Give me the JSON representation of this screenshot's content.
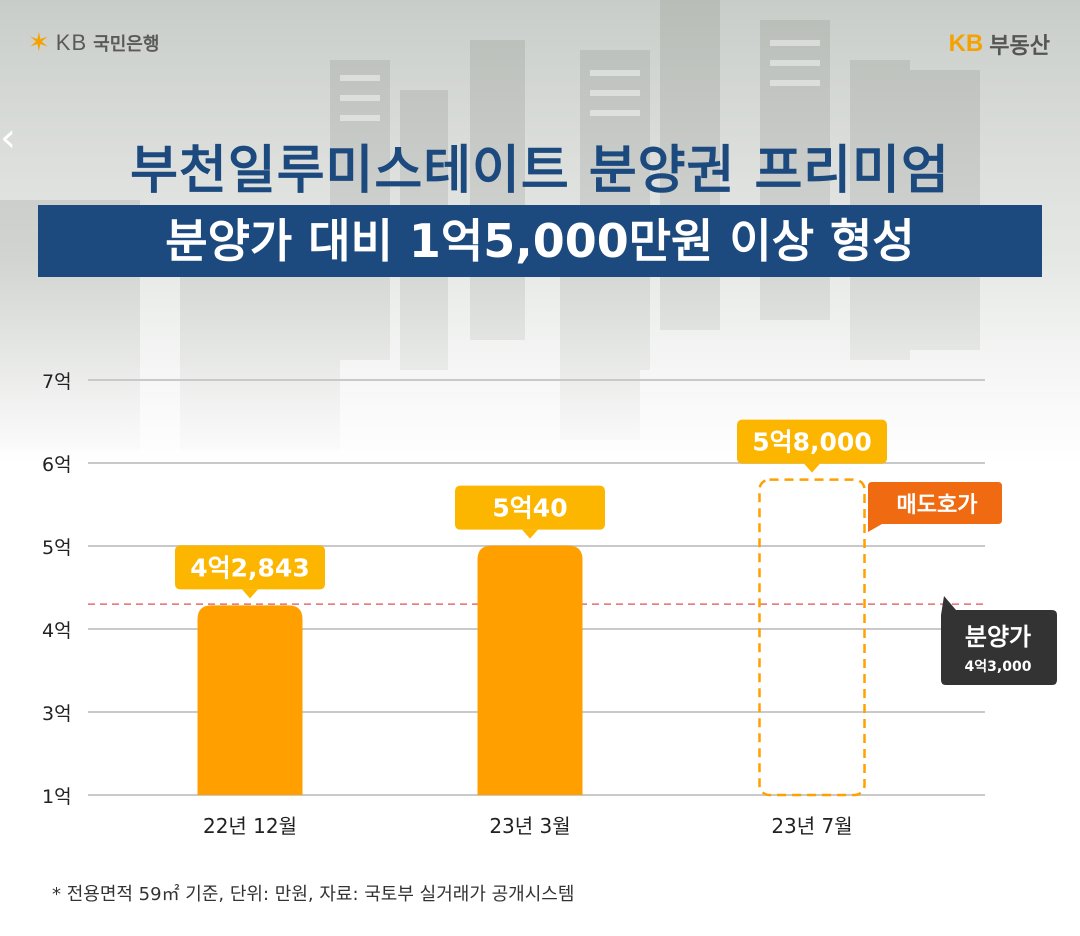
{
  "header": {
    "left_logo_kb": "KB",
    "left_logo_name": "국민은행",
    "right_logo_kb": "KB",
    "right_logo_name": "부동산"
  },
  "title": "부천일루미스테이트 분양권 프리미엄",
  "subtitle": "분양가 대비 1억5,000만원 이상 형성",
  "footnote": "* 전용면적 59㎡ 기준, 단위: 만원, 자료: 국토부 실거래가 공개시스템",
  "colors": {
    "title": "#1c4a7f",
    "banner": "#1d4a7e",
    "bar": "#ff9f00",
    "label_box": "#fdb600",
    "asking_badge": "#ef6a10",
    "presale_badge": "#333333",
    "presale_line": "#e26d6d"
  },
  "chart_data": {
    "type": "bar",
    "categories": [
      "22년 12월",
      "23년 3월",
      "23년 7월"
    ],
    "values": [
      42843,
      50040,
      58000
    ],
    "value_labels": [
      "4억2,843",
      "5억40",
      "5억8,000"
    ],
    "styles": [
      "solid",
      "solid",
      "dashed"
    ],
    "yticks": [
      10000,
      30000,
      40000,
      50000,
      60000,
      70000
    ],
    "ytick_labels": [
      "1억",
      "3억",
      "4억",
      "5억",
      "6억",
      "7억"
    ],
    "ylim": [
      10000,
      70000
    ],
    "grid": true,
    "reference_line": {
      "value": 43000,
      "label": "분양가",
      "value_label": "4억3,000"
    },
    "annotation": "매도호가"
  }
}
